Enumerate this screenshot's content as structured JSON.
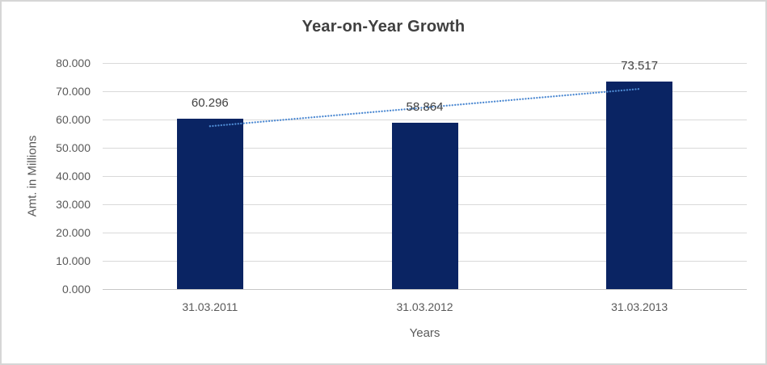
{
  "window": {
    "background": "#ffffff",
    "border_color": "#d6d6d6"
  },
  "chart_data": {
    "type": "bar",
    "title": "Year-on-Year Growth",
    "categories": [
      "31.03.2011",
      "31.03.2012",
      "31.03.2013"
    ],
    "values": [
      60.296,
      58.864,
      73.517
    ],
    "data_labels": [
      "60.296",
      "58.864",
      "73.517"
    ],
    "xlabel": "Years",
    "ylabel": "Amt. in Millions",
    "ylim": [
      0,
      80
    ],
    "ytick_step": 10,
    "ytick_labels": [
      "0.000",
      "10.000",
      "20.000",
      "30.000",
      "40.000",
      "50.000",
      "60.000",
      "70.000",
      "80.000"
    ],
    "grid": true,
    "legend": "none",
    "trendline": {
      "type": "linear",
      "style": "dotted",
      "color": "#4e8ad2"
    },
    "colors": {
      "bar": "#0a2463",
      "gridline": "#d9d9d9",
      "axis_line": "#c6c6c6",
      "title_text": "#404040",
      "tick_text": "#595959",
      "data_label_text": "#404040"
    }
  }
}
